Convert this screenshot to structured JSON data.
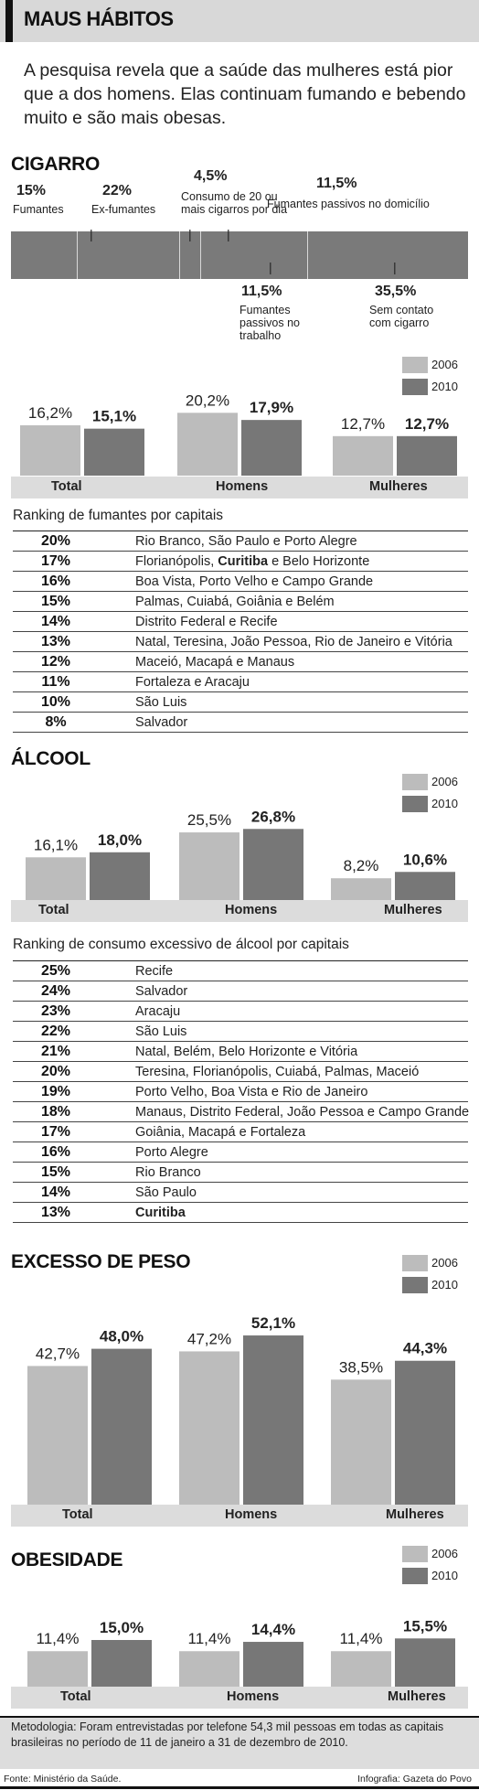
{
  "header": {
    "title": "MAUS HÁBITOS",
    "intro": "A pesquisa revela que a saúde das mulheres está pior que a dos homens. Elas continuam fumando e bebendo muito e são mais obesas."
  },
  "legend": {
    "y2006": "2006",
    "y2010": "2010"
  },
  "colors": {
    "y2006": "#bcbcbc",
    "y2010": "#777777",
    "band": "#dcdcdc",
    "title_bar": "#d8d8d8"
  },
  "cigarro": {
    "title": "CIGARRO",
    "segments": [
      {
        "pct": "15%",
        "label": "Fumantes",
        "value": 15
      },
      {
        "pct": "22%",
        "label": "Ex-fumantes",
        "value": 22
      },
      {
        "pct": "4,5%",
        "label": "Consumo de 20 ou mais cigarros por dia",
        "value": 4.5
      },
      {
        "pct": "11,5%",
        "label": "Fumantes passivos no domicílio",
        "value": 11.5
      },
      {
        "pct": "11,5%",
        "label": "Fumantes passivos no trabalho",
        "value": 11.5
      },
      {
        "pct": "35,5%",
        "label": "Sem contato com cigarro",
        "value": 35.5
      }
    ]
  },
  "rank_fumantes": {
    "title": "Ranking de fumantes por capitais",
    "rows": [
      {
        "pct": "20%",
        "cities": "Rio Branco, São Paulo e Porto Alegre"
      },
      {
        "pct": "17%",
        "cities": "Florianópolis, Curitiba e Belo Horizonte"
      },
      {
        "pct": "16%",
        "cities": "Boa Vista, Porto Velho e Campo Grande"
      },
      {
        "pct": "15%",
        "cities": "Palmas, Cuiabá, Goiânia e Belém"
      },
      {
        "pct": "14%",
        "cities": "Distrito Federal e Recife"
      },
      {
        "pct": "13%",
        "cities": "Natal, Teresina, João Pessoa, Rio de Janeiro e Vitória"
      },
      {
        "pct": "12%",
        "cities": "Maceió, Macapá e Manaus"
      },
      {
        "pct": "11%",
        "cities": "Fortaleza e Aracaju"
      },
      {
        "pct": "10%",
        "cities": "São Luis"
      },
      {
        "pct": "8%",
        "cities": "Salvador"
      }
    ]
  },
  "alcool": {
    "title": "ÁLCOOL"
  },
  "rank_alcool": {
    "title": "Ranking de consumo excessivo de álcool por capitais",
    "rows": [
      {
        "pct": "25%",
        "cities": "Recife"
      },
      {
        "pct": "24%",
        "cities": "Salvador"
      },
      {
        "pct": "23%",
        "cities": "Aracaju"
      },
      {
        "pct": "22%",
        "cities": "São Luis"
      },
      {
        "pct": "21%",
        "cities": "Natal, Belém, Belo Horizonte e Vitória"
      },
      {
        "pct": "20%",
        "cities": "Teresina, Florianópolis, Cuiabá, Palmas, Maceió"
      },
      {
        "pct": "19%",
        "cities": "Porto Velho, Boa Vista e Rio de Janeiro"
      },
      {
        "pct": "18%",
        "cities": "Manaus, Distrito Federal, João Pessoa e Campo Grande"
      },
      {
        "pct": "17%",
        "cities": "Goiânia, Macapá e Fortaleza"
      },
      {
        "pct": "16%",
        "cities": "Porto Alegre"
      },
      {
        "pct": "15%",
        "cities": "Rio Branco"
      },
      {
        "pct": "14%",
        "cities": "São Paulo"
      },
      {
        "pct": "13%",
        "cities": "Curitiba"
      }
    ]
  },
  "peso": {
    "title": "EXCESSO DE PESO"
  },
  "obesidade": {
    "title": "OBESIDADE"
  },
  "chart_data": [
    {
      "type": "bar",
      "title": "",
      "categories": [
        "Total",
        "Homens",
        "Mulheres"
      ],
      "series": [
        {
          "name": "2006",
          "values": [
            16.2,
            20.2,
            12.7
          ],
          "labels": [
            "16,2%",
            "20,2%",
            "12,7%"
          ]
        },
        {
          "name": "2010",
          "values": [
            15.1,
            17.9,
            12.7
          ],
          "labels": [
            "15,1%",
            "17,9%",
            "12,7%"
          ]
        }
      ]
    },
    {
      "type": "bar",
      "title": "",
      "categories": [
        "Total",
        "Homens",
        "Mulheres"
      ],
      "series": [
        {
          "name": "2006",
          "values": [
            16.1,
            25.5,
            8.2
          ],
          "labels": [
            "16,1%",
            "25,5%",
            "8,2%"
          ]
        },
        {
          "name": "2010",
          "values": [
            18.0,
            26.8,
            10.6
          ],
          "labels": [
            "18,0%",
            "26,8%",
            "10,6%"
          ]
        }
      ]
    },
    {
      "type": "bar",
      "title": "",
      "categories": [
        "Total",
        "Homens",
        "Mulheres"
      ],
      "series": [
        {
          "name": "2006",
          "values": [
            42.7,
            47.2,
            38.5
          ],
          "labels": [
            "42,7%",
            "47,2%",
            "38,5%"
          ]
        },
        {
          "name": "2010",
          "values": [
            48.0,
            52.1,
            44.3
          ],
          "labels": [
            "48,0%",
            "52,1%",
            "44,3%"
          ]
        }
      ]
    },
    {
      "type": "bar",
      "title": "",
      "categories": [
        "Total",
        "Homens",
        "Mulheres"
      ],
      "series": [
        {
          "name": "2006",
          "values": [
            11.4,
            11.4,
            11.4
          ],
          "labels": [
            "11,4%",
            "11,4%",
            "11,4%"
          ]
        },
        {
          "name": "2010",
          "values": [
            15.0,
            14.4,
            15.5
          ],
          "labels": [
            "15,0%",
            "14,4%",
            "15,5%"
          ]
        }
      ]
    }
  ],
  "footer": {
    "methodology": "Metodologia: Foram entrevistadas por telefone 54,3 mil pessoas em todas as capitais brasileiras no período de 11 de janeiro a 31 de dezembro de 2010.",
    "source": "Fonte: Ministério da Saúde.",
    "credit": "Infografia: Gazeta do Povo"
  }
}
